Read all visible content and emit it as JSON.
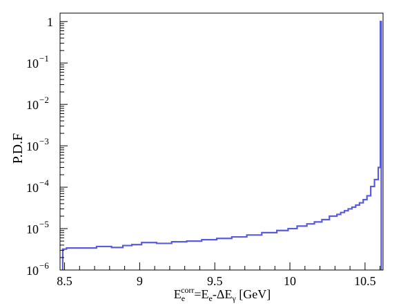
{
  "chart_data": {
    "type": "line",
    "title": "",
    "ylabel": "P.D.F",
    "xlabel": {
      "main": "E",
      "sub": "e",
      "sup": "corr",
      "rest1": "=E",
      "rest1_sub": "e",
      "rest2": "-ΔE",
      "rest2_sub": "γ",
      "unit": " [GeV]"
    },
    "xlim": [
      8.47,
      10.62
    ],
    "ylim": [
      1e-06,
      1.6
    ],
    "yscale": "log",
    "grid": false,
    "x_ticks": [
      {
        "value": 8.5,
        "label": "8.5"
      },
      {
        "value": 9,
        "label": "9"
      },
      {
        "value": 9.5,
        "label": "9.5"
      },
      {
        "value": 10,
        "label": "10"
      },
      {
        "value": 10.5,
        "label": "10.5"
      }
    ],
    "y_ticks": [
      {
        "value": 1,
        "base": "1",
        "exp": ""
      },
      {
        "value": 0.1,
        "base": "10",
        "exp": "−1"
      },
      {
        "value": 0.01,
        "base": "10",
        "exp": "−2"
      },
      {
        "value": 0.001,
        "base": "10",
        "exp": "−3"
      },
      {
        "value": 0.0001,
        "base": "10",
        "exp": "−4"
      },
      {
        "value": 1e-05,
        "base": "10",
        "exp": "−5"
      },
      {
        "value": 1e-06,
        "base": "10",
        "exp": "−6"
      }
    ],
    "series": [
      {
        "color": "#5a5adc",
        "bin_edges": [
          8.488,
          8.513,
          8.713,
          8.813,
          8.888,
          8.948,
          9.013,
          9.113,
          9.213,
          9.313,
          9.413,
          9.513,
          9.613,
          9.713,
          9.813,
          9.913,
          9.988,
          10.048,
          10.113,
          10.163,
          10.213,
          10.263,
          10.313,
          10.338,
          10.363,
          10.388,
          10.413,
          10.438,
          10.463,
          10.488,
          10.513,
          10.538,
          10.563,
          10.588,
          10.602,
          10.608
        ],
        "values": [
          3.2e-06,
          3.4e-06,
          3.7e-06,
          3.5e-06,
          3.9e-06,
          4.1e-06,
          4.6e-06,
          4.4e-06,
          4.8e-06,
          5e-06,
          5.4e-06,
          5.8e-06,
          6.3e-06,
          7e-06,
          8e-06,
          9e-06,
          1e-05,
          1.15e-05,
          1.3e-05,
          1.45e-05,
          1.65e-05,
          2e-05,
          2.2e-05,
          2.45e-05,
          2.7e-05,
          3e-05,
          3.3e-05,
          3.7e-05,
          4.2e-05,
          5e-05,
          6.2e-05,
          0.000104,
          0.000153,
          0.0003,
          1.0
        ]
      }
    ]
  }
}
